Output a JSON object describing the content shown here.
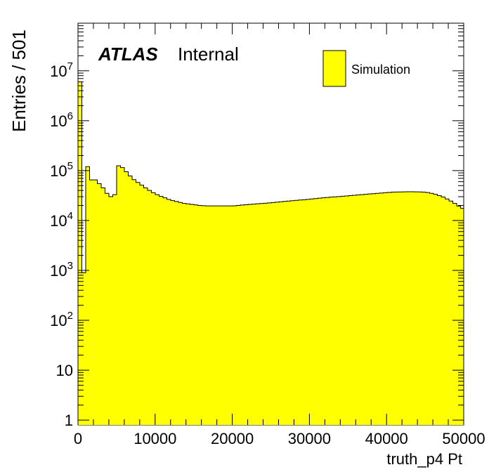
{
  "chart_data": {
    "type": "histogram",
    "xlabel": "truth_p4 Pt",
    "ylabel": "Entries / 501",
    "xlim": [
      0,
      50000
    ],
    "ylim": [
      0.8,
      90000000
    ],
    "y_scale": "log",
    "x_ticks": [
      {
        "value": 0,
        "label": "0"
      },
      {
        "value": 10000,
        "label": "10000"
      },
      {
        "value": 20000,
        "label": "20000"
      },
      {
        "value": 30000,
        "label": "30000"
      },
      {
        "value": 40000,
        "label": "40000"
      },
      {
        "value": 50000,
        "label": "50000"
      }
    ],
    "y_ticks": [
      {
        "value": 1,
        "base": "1",
        "exp": ""
      },
      {
        "value": 10,
        "base": "10",
        "exp": ""
      },
      {
        "value": 100,
        "base": "10",
        "exp": "2"
      },
      {
        "value": 1000,
        "base": "10",
        "exp": "3"
      },
      {
        "value": 10000,
        "base": "10",
        "exp": "4"
      },
      {
        "value": 100000,
        "base": "10",
        "exp": "5"
      },
      {
        "value": 1000000,
        "base": "10",
        "exp": "6"
      },
      {
        "value": 10000000,
        "base": "10",
        "exp": "7"
      }
    ],
    "bin_width": 501,
    "bin_start": 0,
    "fill_color": "#ffff00",
    "line_color": "#000000",
    "atlas_label": "ATLAS",
    "atlas_sublabel": "Internal",
    "legend": {
      "position": "top-right",
      "entries": [
        "Simulation"
      ]
    },
    "series": [
      {
        "name": "Simulation",
        "values": [
          6000000,
          900,
          120000,
          65000,
          65000,
          55000,
          45000,
          35000,
          30000,
          33000,
          125000,
          115000,
          95000,
          78000,
          66000,
          58000,
          51000,
          45000,
          40000,
          36000,
          33000,
          30500,
          28500,
          26500,
          25000,
          24000,
          23000,
          22000,
          21500,
          21000,
          20500,
          20000,
          19800,
          19600,
          19600,
          19600,
          19600,
          19600,
          19600,
          19600,
          19700,
          20000,
          20400,
          20700,
          21000,
          21300,
          21600,
          21900,
          22200,
          22500,
          22900,
          23300,
          23700,
          24100,
          24500,
          24900,
          25300,
          25700,
          26100,
          26500,
          27000,
          27500,
          28000,
          28500,
          29000,
          29400,
          29800,
          30200,
          30600,
          31000,
          31500,
          32000,
          32500,
          33000,
          33500,
          34000,
          34500,
          35000,
          35500,
          36000,
          36500,
          37000,
          37200,
          37400,
          37600,
          37700,
          37700,
          37600,
          37400,
          37000,
          36300,
          35000,
          33500,
          31500,
          29500,
          27000,
          24500,
          22000,
          19500,
          17500
        ]
      }
    ]
  }
}
